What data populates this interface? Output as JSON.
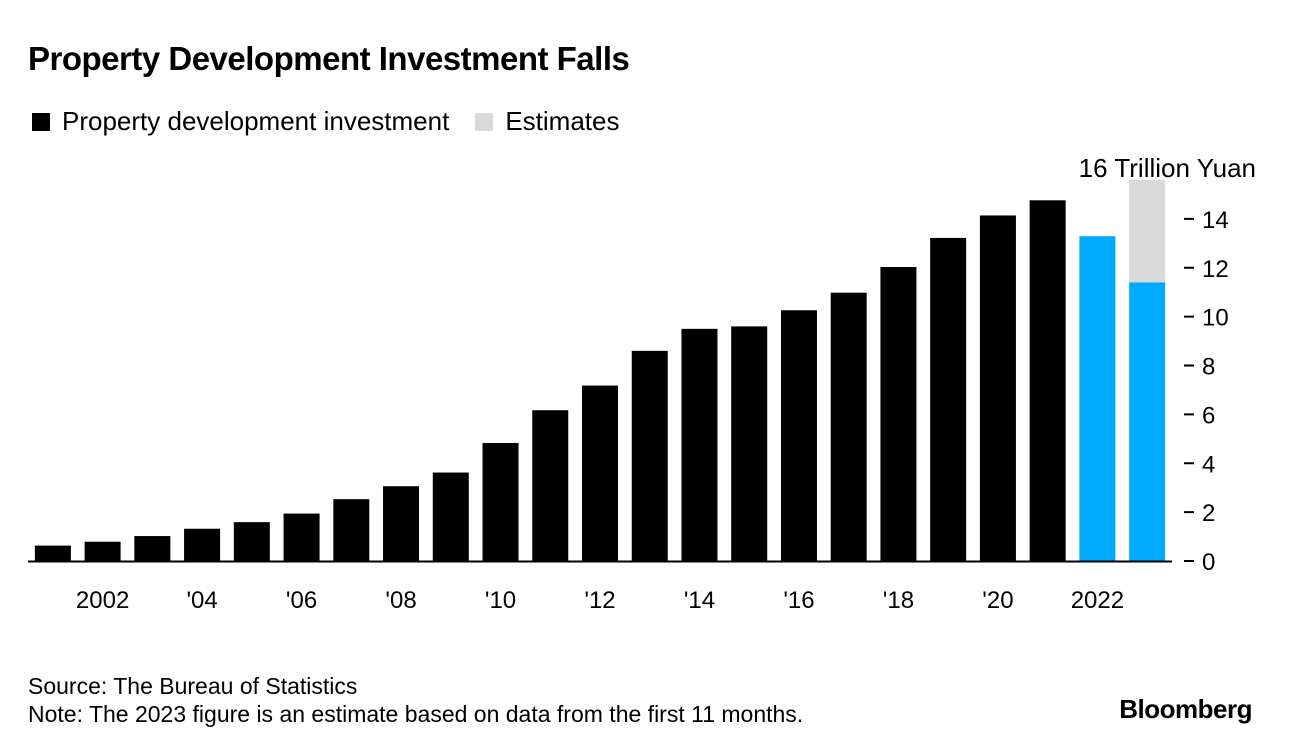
{
  "title": "Property Development Investment Falls",
  "legend": [
    {
      "label": "Property development investment",
      "color": "#000000"
    },
    {
      "label": "Estimates",
      "color": "#d9d9d9"
    }
  ],
  "chart_data": {
    "type": "bar",
    "title": "Property Development Investment Falls",
    "unit_label": "16 Trillion Yuan",
    "ylabel": "Trillion Yuan",
    "xlabel": "",
    "ylim": [
      0,
      16
    ],
    "yticks": [
      0,
      2,
      4,
      6,
      8,
      10,
      12,
      14
    ],
    "categories": [
      "2001",
      "2002",
      "2003",
      "2004",
      "2005",
      "2006",
      "2007",
      "2008",
      "2009",
      "2010",
      "2011",
      "2012",
      "2013",
      "2014",
      "2015",
      "2016",
      "2017",
      "2018",
      "2019",
      "2020",
      "2021",
      "2022",
      "2023"
    ],
    "xtick_labels": [
      {
        "category": "2002",
        "label": "2002"
      },
      {
        "category": "2004",
        "label": "'04"
      },
      {
        "category": "2006",
        "label": "'06"
      },
      {
        "category": "2008",
        "label": "'08"
      },
      {
        "category": "2010",
        "label": "'10"
      },
      {
        "category": "2012",
        "label": "'12"
      },
      {
        "category": "2014",
        "label": "'14"
      },
      {
        "category": "2016",
        "label": "'16"
      },
      {
        "category": "2018",
        "label": "'18"
      },
      {
        "category": "2020",
        "label": "'20"
      },
      {
        "category": "2022",
        "label": "2022"
      }
    ],
    "series": [
      {
        "name": "Property development investment",
        "values": [
          0.63,
          0.79,
          1.02,
          1.32,
          1.59,
          1.94,
          2.53,
          3.06,
          3.62,
          4.83,
          6.17,
          7.18,
          8.6,
          9.5,
          9.6,
          10.26,
          10.98,
          12.03,
          13.22,
          14.14,
          14.76,
          13.29,
          11.4
        ],
        "highlight": {
          "2022": "#00aaff",
          "2023": "#00aaff"
        }
      },
      {
        "name": "Estimates",
        "values": [
          null,
          null,
          null,
          null,
          null,
          null,
          null,
          null,
          null,
          null,
          null,
          null,
          null,
          null,
          null,
          null,
          null,
          null,
          null,
          null,
          null,
          null,
          15.6
        ],
        "stack_base": "Property development investment"
      }
    ],
    "colors": {
      "actual": "#000000",
      "recent": "#00aaff",
      "estimate": "#d9d9d9",
      "axis": "#000000"
    }
  },
  "source": "Source: The Bureau of Statistics",
  "note": "Note: The 2023 figure is an estimate based on data from the first 11 months.",
  "brand": "Bloomberg"
}
